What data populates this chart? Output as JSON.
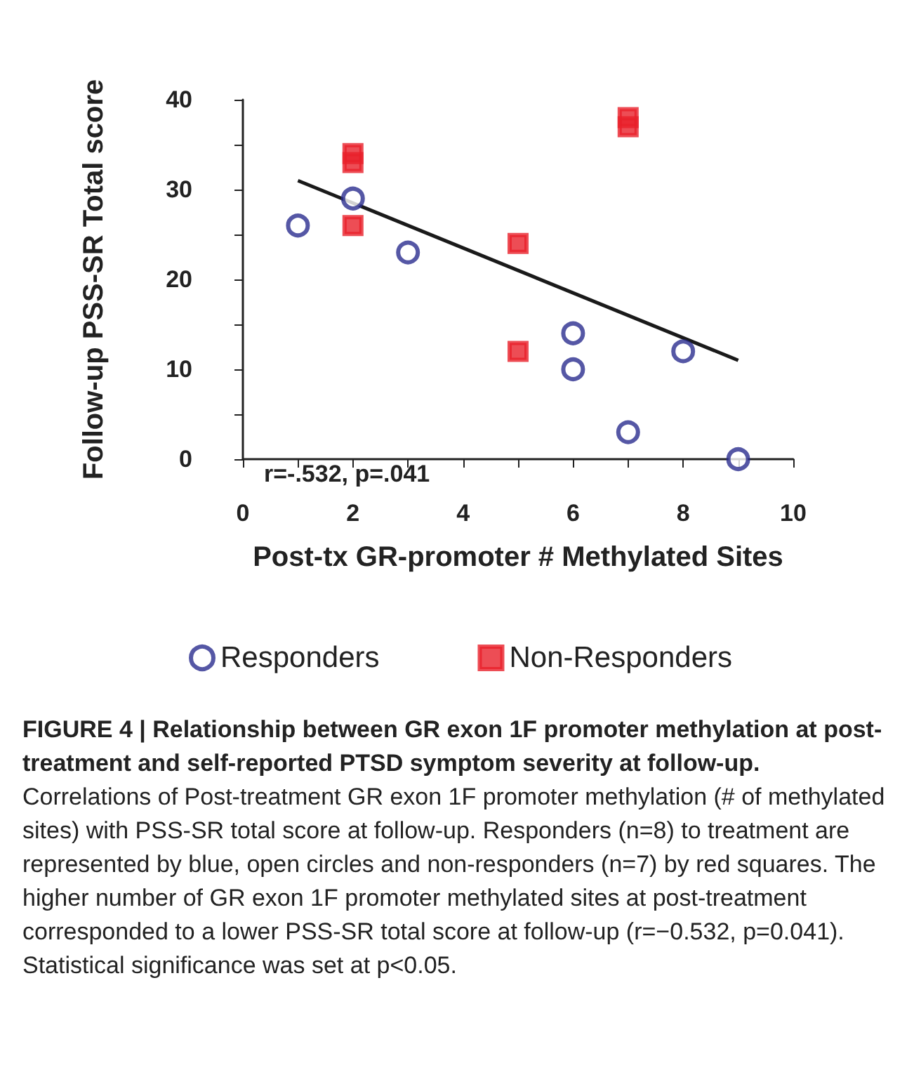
{
  "chart_data": {
    "type": "scatter",
    "xlabel": "Post-tx GR-promoter # Methylated Sites",
    "ylabel": "Follow-up PSS-SR Total score",
    "xlim": [
      0,
      10
    ],
    "xticks": [
      0,
      {
        "value": 1,
        "label": null
      },
      2,
      {
        "value": 3,
        "label": null
      },
      4,
      {
        "value": 5,
        "label": null
      },
      6,
      {
        "value": 7,
        "label": null
      },
      8,
      {
        "value": 9,
        "label": null
      },
      10
    ],
    "ylim": [
      0,
      40
    ],
    "yticks": [
      0,
      {
        "value": 5,
        "label": null
      },
      10,
      {
        "value": 15,
        "label": null
      },
      20,
      {
        "value": 25,
        "label": null
      },
      30,
      {
        "value": 35,
        "label": null
      },
      40
    ],
    "grid": false,
    "legend": "bottom",
    "series": [
      {
        "name": "Responders",
        "color": "#2b2d8e",
        "marker": "circle",
        "x": [
          1,
          2,
          3,
          6,
          6,
          7,
          8,
          9
        ],
        "values": [
          26,
          29,
          23,
          14,
          10,
          3,
          12,
          0
        ]
      },
      {
        "name": "Non-Responders",
        "color": "#e8202a",
        "marker": "square",
        "x": [
          2,
          2,
          2,
          5,
          5,
          7,
          7
        ],
        "values": [
          34,
          33,
          26,
          24,
          12,
          38,
          37
        ]
      },
      {
        "type": "line",
        "color": "#1a1a1a",
        "marker": "none",
        "line_style": "solid",
        "x": [
          1,
          9
        ],
        "values": [
          31,
          11
        ]
      }
    ],
    "annotations": [
      "r=-.532, p=.041",
      "FIGURE 4 | Relationship between GR exon 1F promoter methylation at post-treatment and self-reported PTSD symptom severity at follow-up.",
      "Correlations of Post-treatment GR exon 1F promoter methylation (# of methylated sites) with PSS-SR total score at follow-up. Responders (n=8) to treatment are represented by blue, open circles and non-responders (n=7) by red squares. The higher number of GR exon 1F promoter methylated sites at post-treatment corresponded to a lower PSS-SR total score at follow-up (r=−0.532, p=0.041). Statistical significance was set at p<0.05."
    ]
  }
}
